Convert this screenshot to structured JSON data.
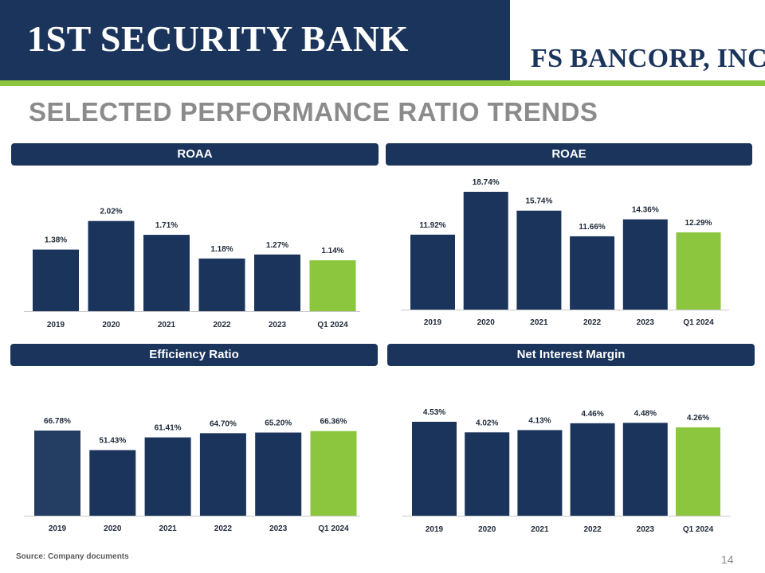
{
  "header": {
    "bank_name": "1ST SECURITY BANK",
    "parent_company": "FS BANCORP, INC."
  },
  "title": "SELECTED PERFORMANCE RATIO TRENDS",
  "colors": {
    "navy": "#1a345c",
    "green": "#8cc63f",
    "grey": "#8b8b8b"
  },
  "chart_data": [
    {
      "type": "bar",
      "title": "ROAA",
      "categories": [
        "2019",
        "2020",
        "2021",
        "2022",
        "2023",
        "Q1 2024"
      ],
      "values": [
        1.38,
        2.02,
        1.71,
        1.18,
        1.27,
        1.14
      ],
      "labels": [
        "1.38%",
        "2.02%",
        "1.71%",
        "1.18%",
        "1.27%",
        "1.14%"
      ],
      "ylim": [
        0,
        2.3
      ],
      "highlight": "Q1 2024"
    },
    {
      "type": "bar",
      "title": "ROAE",
      "categories": [
        "2019",
        "2020",
        "2021",
        "2022",
        "2023",
        "Q1 2024"
      ],
      "values": [
        11.92,
        18.74,
        15.74,
        11.66,
        14.36,
        12.29
      ],
      "labels": [
        "11.92%",
        "18.74%",
        "15.74%",
        "11.66%",
        "14.36%",
        "12.29%"
      ],
      "ylim": [
        0,
        18.74
      ],
      "highlight": "Q1 2024"
    },
    {
      "type": "bar",
      "title": "Efficiency Ratio",
      "categories": [
        "2019",
        "2020",
        "2021",
        "2022",
        "2023",
        "Q1 2024"
      ],
      "values": [
        66.78,
        51.43,
        61.41,
        64.7,
        65.2,
        66.36
      ],
      "labels": [
        "66.78%",
        "51.43%",
        "61.41%",
        "64.70%",
        "65.20%",
        "66.36%"
      ],
      "ylim": [
        0,
        66.78
      ],
      "highlight": "Q1 2024"
    },
    {
      "type": "bar",
      "title": "Net Interest Margin",
      "categories": [
        "2019",
        "2020",
        "2021",
        "2022",
        "2023",
        "Q1 2024"
      ],
      "values": [
        4.53,
        4.02,
        4.13,
        4.46,
        4.48,
        4.26
      ],
      "labels": [
        "4.53%",
        "4.02%",
        "4.13%",
        "4.46%",
        "4.48%",
        "4.26%"
      ],
      "ylim": [
        0,
        4.53
      ],
      "highlight": "Q1 2024"
    }
  ],
  "footer": {
    "source": "Source: Company documents",
    "page_number": "14"
  }
}
